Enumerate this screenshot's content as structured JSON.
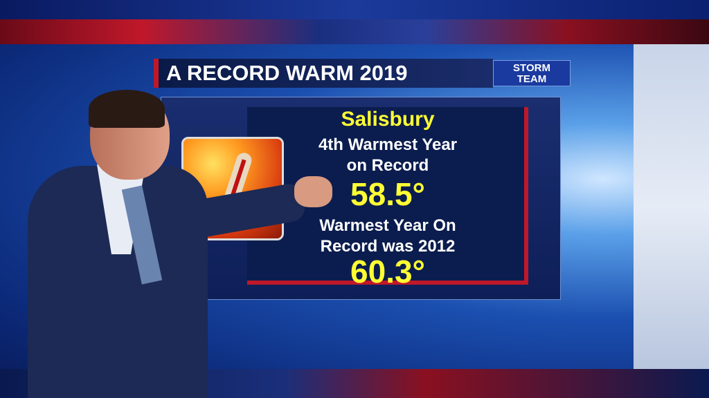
{
  "header": {
    "title": "A RECORD WARM 2019",
    "logo_line1": "STORM",
    "logo_line2": "TEAM"
  },
  "board": {
    "location": "Salisbury",
    "line1": "4th Warmest Year",
    "line2": "on Record",
    "value1": "58.5°",
    "line3": "Warmest Year On",
    "line4": "Record was 2012",
    "value2": "60.3°"
  },
  "icons": {
    "thermometer": "thermometer-sun-icon"
  },
  "colors": {
    "accent_red": "#c0182a",
    "highlight_yellow": "#ffff33",
    "board_navy": "#0b1d4e"
  }
}
